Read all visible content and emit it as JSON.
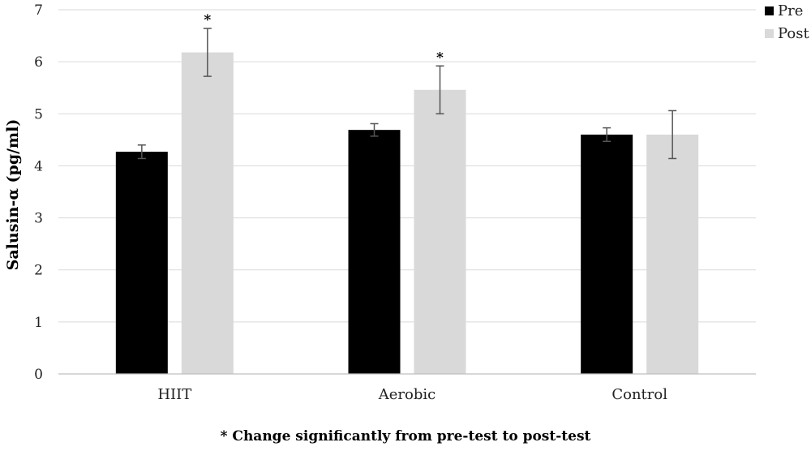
{
  "chart_data": {
    "type": "bar",
    "title": "",
    "xlabel": "",
    "ylabel": "Salusin-α (pg/ml)",
    "ylim": [
      0,
      7
    ],
    "yticks": [
      0,
      1,
      2,
      3,
      4,
      5,
      6,
      7
    ],
    "grid": true,
    "legend_position": "top-right",
    "categories": [
      "HIIT",
      "Aerobic",
      "Control"
    ],
    "series": [
      {
        "name": "Pre",
        "color": "#000000",
        "values": [
          4.27,
          4.69,
          4.6
        ],
        "errors": [
          0.13,
          0.12,
          0.13
        ]
      },
      {
        "name": "Post",
        "color": "#d9d9d9",
        "values": [
          6.18,
          5.46,
          4.6
        ],
        "errors": [
          0.46,
          0.46,
          0.46
        ]
      }
    ],
    "annotations": [
      {
        "category": "HIIT",
        "series": "Post",
        "text": "*"
      },
      {
        "category": "Aerobic",
        "series": "Post",
        "text": "*"
      }
    ],
    "footnote": "* Change significantly from pre-test to post-test"
  }
}
